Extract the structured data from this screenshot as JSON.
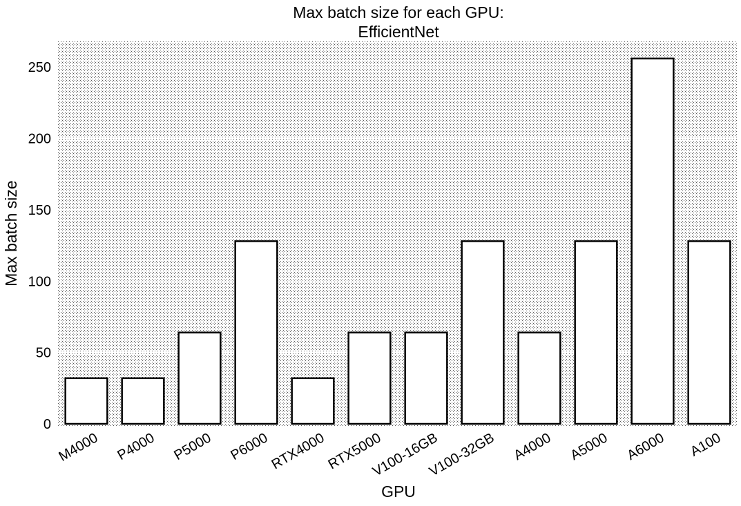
{
  "chart_data": {
    "type": "bar",
    "title": [
      "Max batch size for each GPU:",
      "EfficientNet"
    ],
    "xlabel": "GPU",
    "ylabel": "Max batch size",
    "categories": [
      "M4000",
      "P4000",
      "P5000",
      "P6000",
      "RTX4000",
      "RTX5000",
      "V100-16GB",
      "V100-32GB",
      "A4000",
      "A5000",
      "A6000",
      "A100"
    ],
    "values": [
      32,
      32,
      64,
      128,
      32,
      64,
      64,
      128,
      64,
      128,
      256,
      128
    ],
    "ylim": [
      0,
      268
    ],
    "yticks": [
      0,
      50,
      100,
      150,
      200,
      250
    ],
    "grid": true,
    "legend": "none",
    "colors": {
      "bar_fill": "#ffffff",
      "bar_edge": "#000000",
      "background": "dotted-gray"
    }
  }
}
